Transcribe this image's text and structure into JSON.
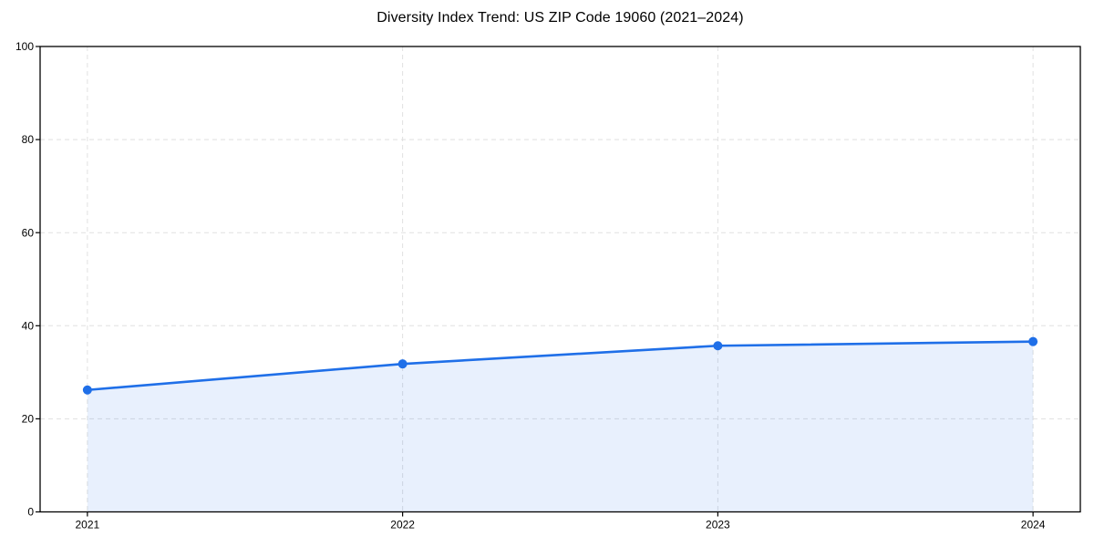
{
  "page": {
    "background_color": "#ffffff"
  },
  "chart_data": {
    "type": "area",
    "title": "Diversity Index Trend: US ZIP Code 19060 (2021–2024)",
    "x": [
      "2021",
      "2022",
      "2023",
      "2024"
    ],
    "series": [
      {
        "name": "Diversity Index",
        "values": [
          26.2,
          31.8,
          35.7,
          36.6
        ]
      }
    ],
    "xlabel": "",
    "ylabel": "",
    "ylim": [
      0,
      100
    ],
    "yticks": [
      0,
      20,
      40,
      60,
      80,
      100
    ],
    "xticks": [
      "2021",
      "2022",
      "2023",
      "2024"
    ],
    "x_margin_fraction": 0.05,
    "grid": true,
    "grid_style": "dashed",
    "legend_position": "none",
    "marker": "circle",
    "line_color": "#1f6fe8",
    "marker_color": "#1f6fe8",
    "fill_color": "#1f6fe8",
    "fill_opacity": 0.1,
    "grid_color": "#e0e0e0",
    "axis_color": "#000000",
    "tick_label_color": "#000000",
    "title_color": "#000000"
  }
}
